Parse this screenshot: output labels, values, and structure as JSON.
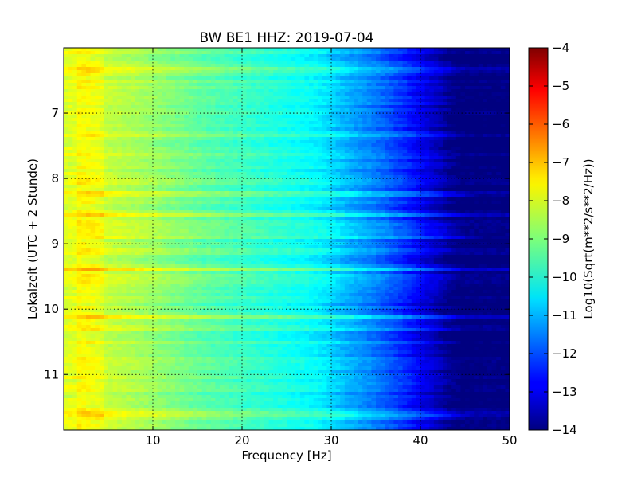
{
  "chart_data": {
    "type": "heatmap",
    "title": "BW BE1 HHZ: 2019-07-04",
    "xlabel": "Frequency [Hz]",
    "ylabel": "Lokalzeit (UTC + 2 Stunde)",
    "xlim": [
      0,
      50
    ],
    "ylim": [
      6.0,
      11.85
    ],
    "y_inverted": true,
    "x_ticks": [
      10,
      20,
      30,
      40,
      50
    ],
    "x_tick_labels": [
      "10",
      "20",
      "30",
      "40",
      "50"
    ],
    "y_ticks": [
      7,
      8,
      9,
      10,
      11
    ],
    "y_tick_labels": [
      "7",
      "8",
      "9",
      "10",
      "11"
    ],
    "grid": true,
    "colormap": "jet",
    "colorbar": {
      "label": "Log10(Sqrt(m**2/s**2/Hz))",
      "range": [
        -14,
        -4
      ],
      "ticks": [
        -4,
        -5,
        -6,
        -7,
        -8,
        -9,
        -10,
        -11,
        -12,
        -13,
        -14
      ],
      "tick_labels": [
        "−4",
        "−5",
        "−6",
        "−7",
        "−8",
        "−9",
        "−10",
        "−11",
        "−12",
        "−13",
        "−14"
      ]
    },
    "frequency_profile": {
      "frequency_hz": [
        0,
        2,
        4,
        8,
        12,
        16,
        20,
        24,
        28,
        30,
        32,
        34,
        36,
        38,
        40,
        42,
        43,
        44,
        45,
        50
      ],
      "level": [
        -8.1,
        -7.9,
        -8.2,
        -8.5,
        -8.9,
        -9.3,
        -9.6,
        -9.9,
        -10.2,
        -10.5,
        -11.0,
        -11.3,
        -11.7,
        -12.2,
        -12.8,
        -13.3,
        -13.7,
        -14.0,
        -14.0,
        -14.0
      ]
    },
    "high_energy_times": [
      6.35,
      8.25,
      8.55,
      8.88,
      9.38,
      10.12,
      11.6
    ]
  }
}
